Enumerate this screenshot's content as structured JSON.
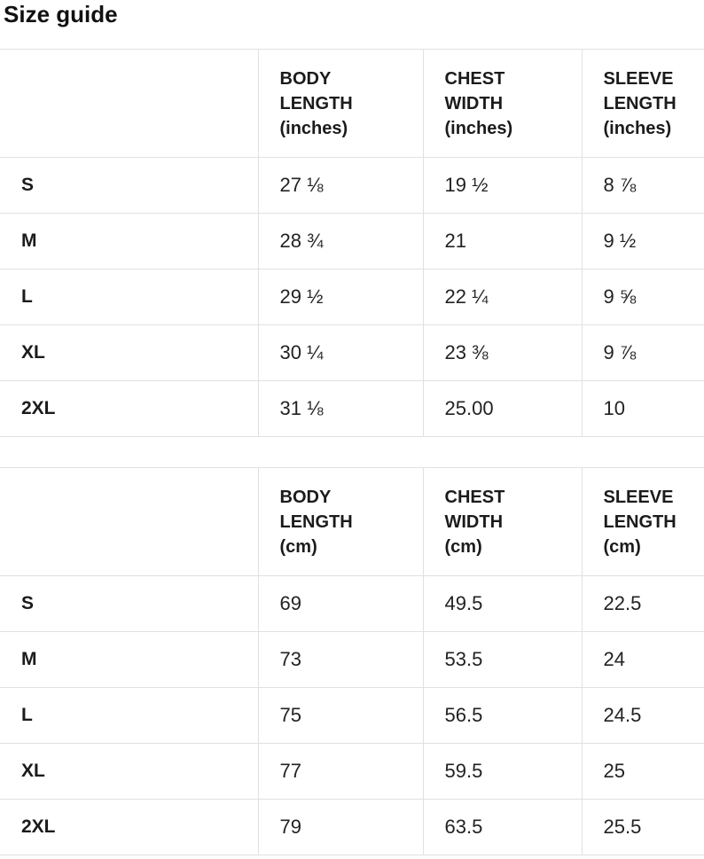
{
  "page": {
    "title": "Size guide",
    "colors": {
      "background": "#ffffff",
      "text": "#222222",
      "border": "#e1e1e1"
    }
  },
  "tables": [
    {
      "id": "inches",
      "unit": "inches",
      "columns": [
        "",
        "BODY\nLENGTH\n(inches)",
        "CHEST\nWIDTH\n(inches)",
        "SLEEVE\nLENGTH\n(inches)"
      ],
      "rows": [
        {
          "size": "S",
          "cells": [
            "27 ⅛",
            "19 ½",
            "8 ⅞"
          ]
        },
        {
          "size": "M",
          "cells": [
            "28 ¾",
            "21",
            "9 ½"
          ]
        },
        {
          "size": "L",
          "cells": [
            "29 ½",
            "22 ¼",
            "9 ⅝"
          ]
        },
        {
          "size": "XL",
          "cells": [
            "30 ¼",
            "23 ⅜",
            "9 ⅞"
          ]
        },
        {
          "size": "2XL",
          "cells": [
            "31 ⅛",
            "25.00",
            "10"
          ]
        }
      ]
    },
    {
      "id": "cm",
      "unit": "cm",
      "columns": [
        "",
        "BODY\nLENGTH\n(cm)",
        "CHEST\nWIDTH\n(cm)",
        "SLEEVE\nLENGTH\n(cm)"
      ],
      "rows": [
        {
          "size": "S",
          "cells": [
            "69",
            "49.5",
            "22.5"
          ]
        },
        {
          "size": "M",
          "cells": [
            "73",
            "53.5",
            "24"
          ]
        },
        {
          "size": "L",
          "cells": [
            "75",
            "56.5",
            "24.5"
          ]
        },
        {
          "size": "XL",
          "cells": [
            "77",
            "59.5",
            "25"
          ]
        },
        {
          "size": "2XL",
          "cells": [
            "79",
            "63.5",
            "25.5"
          ]
        }
      ]
    }
  ]
}
